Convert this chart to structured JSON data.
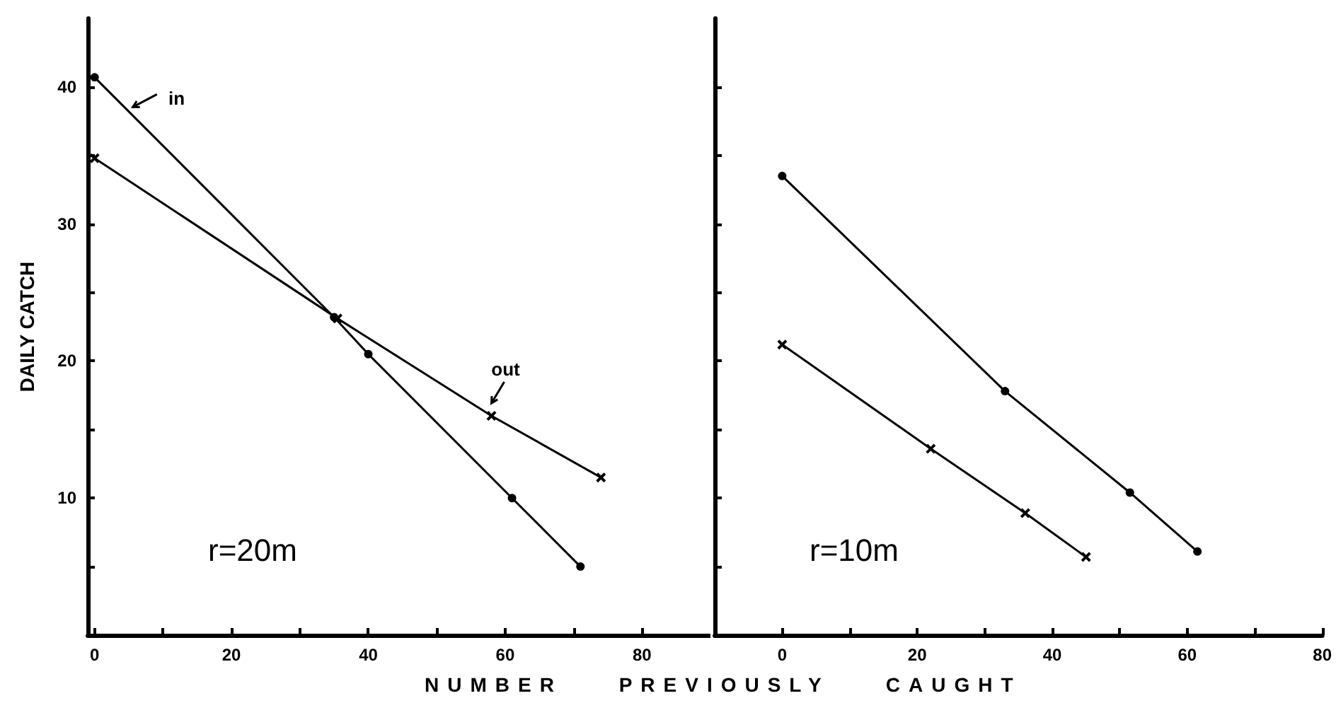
{
  "chart_data": [
    {
      "type": "line",
      "ylabel": "DAILY CATCH",
      "xlabel": "NUMBER PREVIOUSLY CAUGHT",
      "annotations": [
        "r=20m"
      ],
      "xlim": [
        -1,
        90
      ],
      "xticks": [
        0,
        {
          "value": 10,
          "label": null
        },
        20,
        {
          "value": 30,
          "label": null
        },
        40,
        {
          "value": 50,
          "label": null
        },
        60,
        {
          "value": 70,
          "label": null
        },
        80
      ],
      "ylim": [
        0,
        45
      ],
      "yticks": [
        {
          "value": 5,
          "label": null
        },
        10,
        {
          "value": 15,
          "label": null
        },
        20,
        {
          "value": 25,
          "label": null
        },
        30,
        {
          "value": 35,
          "label": null
        },
        40
      ],
      "series": [
        {
          "name": "in",
          "color": "#000000",
          "marker": "circle",
          "x": [
            0,
            35,
            40,
            61,
            71
          ],
          "values": [
            40.7,
            23.2,
            20.5,
            10,
            5
          ]
        },
        {
          "name": "out",
          "color": "#000000",
          "marker": "cross",
          "x": [
            0,
            35.5,
            58,
            74
          ],
          "values": [
            34.8,
            23.1,
            16,
            11.5
          ]
        }
      ]
    },
    {
      "type": "line",
      "annotations": [
        "r=10m"
      ],
      "tick_labels": "x",
      "xlim": [
        -10,
        80
      ],
      "xticks": [
        {
          "value": -10,
          "label": null
        },
        0,
        {
          "value": 10,
          "label": null
        },
        20,
        {
          "value": 30,
          "label": null
        },
        40,
        {
          "value": 50,
          "label": null
        },
        60,
        {
          "value": 70,
          "label": null
        },
        80
      ],
      "ylim": [
        0,
        45
      ],
      "yticks": [
        {
          "value": 5,
          "label": null
        },
        {
          "value": 10,
          "label": null
        },
        {
          "value": 15,
          "label": null
        },
        {
          "value": 20,
          "label": null
        },
        {
          "value": 25,
          "label": null
        },
        {
          "value": 30,
          "label": null
        },
        {
          "value": 35,
          "label": null
        },
        {
          "value": 40,
          "label": null
        }
      ],
      "series": [
        {
          "color": "#000000",
          "marker": "circle",
          "x": [
            0,
            33,
            51.5,
            61.5
          ],
          "values": [
            33.5,
            17.8,
            10.4,
            6.1
          ]
        },
        {
          "color": "#000000",
          "marker": "cross",
          "x": [
            0,
            22,
            36,
            45
          ],
          "values": [
            21.2,
            13.6,
            8.9,
            5.7
          ]
        }
      ]
    }
  ]
}
